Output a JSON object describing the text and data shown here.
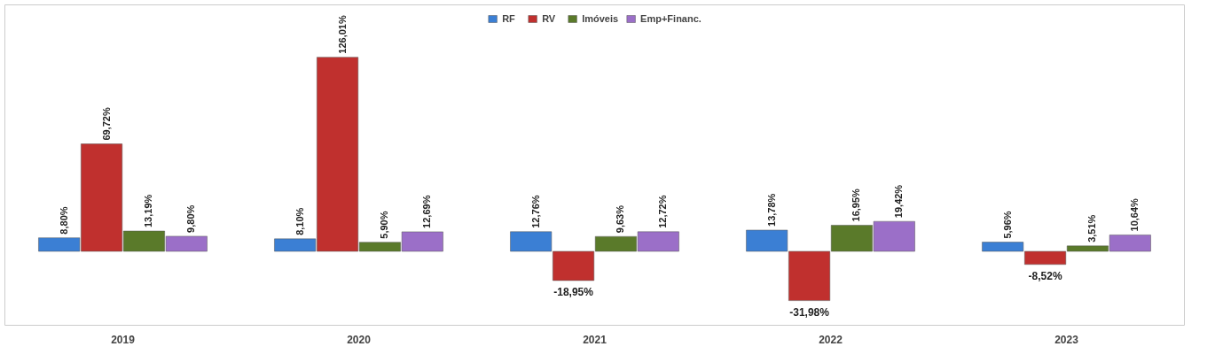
{
  "chart_data": {
    "type": "bar",
    "categories": [
      "2019",
      "2020",
      "2021",
      "2022",
      "2023"
    ],
    "series": [
      {
        "name": "RF",
        "color": "#3b7fd4",
        "values": [
          8.8,
          8.1,
          12.76,
          13.78,
          5.96
        ],
        "value_labels": [
          "8,80%",
          "8,10%",
          "12,76%",
          "13,78%",
          "5,96%"
        ]
      },
      {
        "name": "RV",
        "color": "#c0302e",
        "values": [
          69.72,
          126.01,
          -18.95,
          -31.98,
          -8.52
        ],
        "value_labels": [
          "69,72%",
          "126,01%",
          "-18,95%",
          "-31,98%",
          "-8,52%"
        ]
      },
      {
        "name": "Imóveis",
        "color": "#5a7a2a",
        "values": [
          13.19,
          5.9,
          9.63,
          16.95,
          3.51
        ],
        "value_labels": [
          "13,19%",
          "5,90%",
          "9,63%",
          "16,95%",
          "3,51%"
        ]
      },
      {
        "name": "Emp+Financ.",
        "color": "#9b6fc8",
        "values": [
          9.8,
          12.69,
          12.72,
          19.42,
          10.64
        ],
        "value_labels": [
          "9,80%",
          "12,69%",
          "12,72%",
          "19,42%",
          "10,64%"
        ]
      }
    ],
    "ylim": [
      -48,
      160
    ],
    "tick_labels": "x",
    "grid": false,
    "legend": "top"
  }
}
